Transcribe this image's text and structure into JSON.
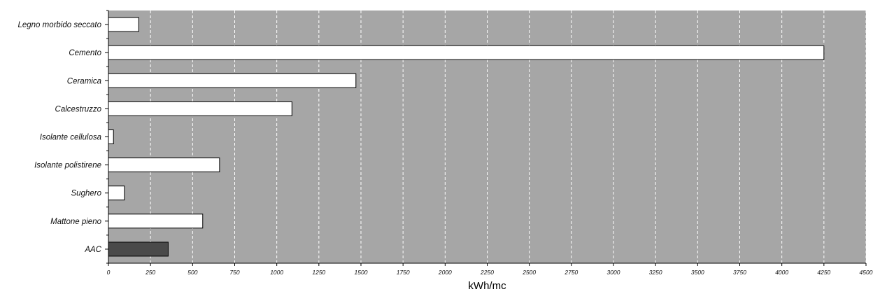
{
  "chart_data": {
    "type": "bar",
    "orientation": "horizontal",
    "categories": [
      "Legno morbido seccato",
      "Cemento",
      "Ceramica",
      "Calcestruzzo",
      "Isolante cellulosa",
      "Isolante polistirene",
      "Sughero",
      "Mattone pieno",
      "AAC"
    ],
    "values": [
      180,
      4250,
      1470,
      1090,
      30,
      660,
      95,
      560,
      355
    ],
    "bar_colors": [
      "#ffffff",
      "#ffffff",
      "#ffffff",
      "#ffffff",
      "#ffffff",
      "#ffffff",
      "#ffffff",
      "#ffffff",
      "#4a4a4a"
    ],
    "xlabel": "kWh/mc",
    "ylabel": "",
    "xlim": [
      0,
      4500
    ],
    "xticks": [
      0,
      250,
      500,
      750,
      1000,
      1250,
      1500,
      1750,
      2000,
      2250,
      2500,
      2750,
      3000,
      3250,
      3500,
      3750,
      4000,
      4250,
      4500
    ],
    "grid": true,
    "legend": "none",
    "colors": {
      "plot_background": "#a6a6a6",
      "grid": "#ffffff",
      "bar_edge": "#000000"
    }
  }
}
